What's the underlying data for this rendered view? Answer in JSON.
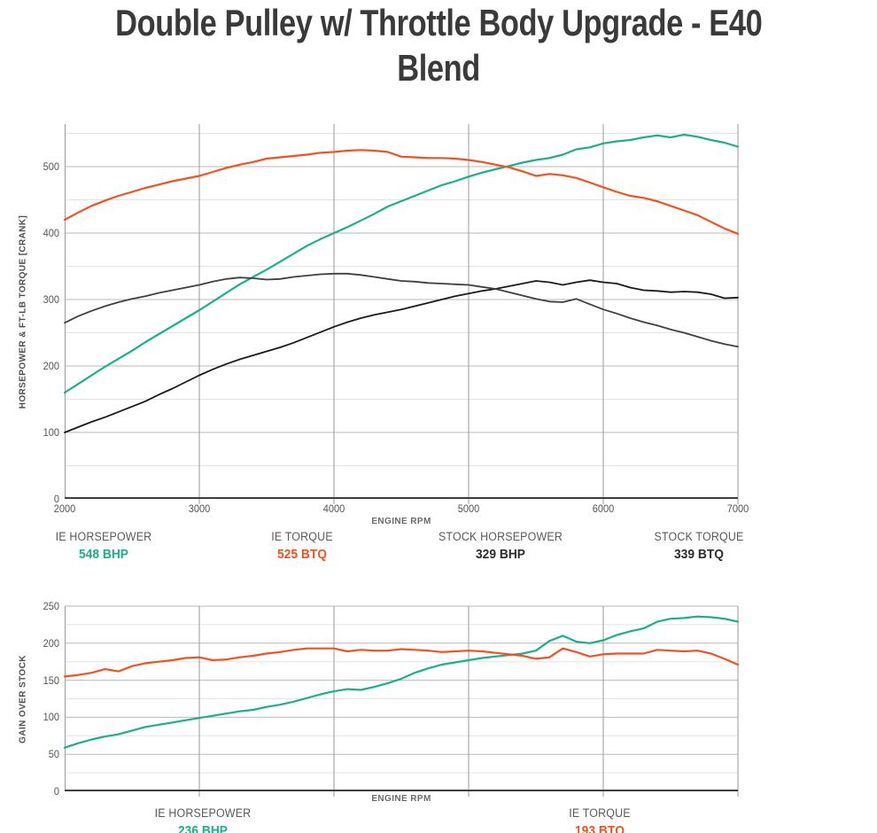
{
  "title": {
    "full": "Double Pulley w/ Throttle Body Upgrade - E40 Blend",
    "lines": [
      "Double Pulley w/ Throttle Body Upgrade - E40",
      "Blend"
    ]
  },
  "colors": {
    "ie_teal": "#1BAF8B",
    "ie_orange": "#F4511E",
    "stock_black": "#1A1A1A",
    "stock_gray": "#3F3F3F",
    "legend_dark_value": "#2D2D2D",
    "grid_minor": "#E3E3E3",
    "grid_major": "#B9B9B9",
    "grid_vertical": "#9A9A9A",
    "axis_bottom": "#3F3F3F",
    "axis_left": "#9A9A9A",
    "text_title": "#3A3A3A",
    "text_gray": "#565656"
  },
  "chart_data": [
    {
      "id": "main",
      "type": "line",
      "title": "",
      "xlabel": "ENGINE RPM",
      "ylabel": "HORSEPOWER & FT-LB TORQUE [CRANK]",
      "xlim": [
        2000,
        7000
      ],
      "ylim": [
        0,
        564
      ],
      "x_start": 2000,
      "x_step": 100,
      "x_ticks": [
        2000,
        3000,
        4000,
        5000,
        6000,
        7000
      ],
      "show_x_tick_labels": true,
      "y_ticks": [
        0,
        100,
        200,
        300,
        400,
        500
      ],
      "y_minor_step": 50,
      "y_grid_max": 550,
      "grid": true,
      "legend_position": "bottom",
      "series": [
        {
          "name": "IE HORSEPOWER",
          "peak": "548 BHP",
          "color": "#1BAF8B",
          "width": 2.2,
          "values": [
            160,
            173,
            186,
            199,
            211,
            223,
            236,
            248,
            260,
            272,
            284,
            297,
            310,
            323,
            334,
            345,
            357,
            369,
            381,
            391,
            400,
            409,
            419,
            429,
            440,
            448,
            456,
            464,
            472,
            478,
            485,
            491,
            496,
            501,
            506,
            510,
            513,
            518,
            526,
            529,
            535,
            538,
            540,
            544,
            547,
            544,
            548,
            545,
            540,
            536,
            530
          ]
        },
        {
          "name": "IE TORQUE",
          "peak": "525 BTQ",
          "color": "#F4511E",
          "width": 2.2,
          "values": [
            420,
            431,
            441,
            449,
            456,
            462,
            468,
            473,
            478,
            482,
            486,
            492,
            498,
            503,
            507,
            512,
            514,
            516,
            518,
            521,
            522,
            524,
            525,
            524,
            522,
            515,
            514,
            513,
            513,
            512,
            510,
            507,
            503,
            499,
            493,
            486,
            489,
            487,
            483,
            476,
            469,
            462,
            456,
            453,
            448,
            441,
            434,
            427,
            417,
            407,
            399
          ]
        },
        {
          "name": "STOCK HORSEPOWER",
          "peak": "329 BHP",
          "color": "#1A1A1A",
          "width": 1.8,
          "values": [
            100,
            108,
            116,
            123,
            131,
            139,
            147,
            157,
            166,
            176,
            186,
            195,
            203,
            210,
            216,
            222,
            228,
            235,
            243,
            251,
            259,
            266,
            272,
            277,
            281,
            285,
            290,
            295,
            300,
            305,
            309,
            313,
            316,
            320,
            324,
            328,
            326,
            322,
            326,
            329,
            326,
            324,
            318,
            314,
            313,
            311,
            312,
            311,
            308,
            302,
            303
          ]
        },
        {
          "name": "STOCK TORQUE",
          "peak": "339 BTQ",
          "color": "#3F3F3F",
          "width": 1.8,
          "values": [
            265,
            275,
            283,
            290,
            296,
            301,
            305,
            310,
            314,
            318,
            322,
            327,
            331,
            333,
            332,
            330,
            331,
            334,
            336,
            338,
            339,
            339,
            337,
            334,
            331,
            328,
            327,
            325,
            324,
            323,
            322,
            319,
            316,
            311,
            306,
            301,
            297,
            296,
            301,
            293,
            285,
            279,
            272,
            266,
            261,
            255,
            250,
            244,
            238,
            233,
            229
          ]
        }
      ],
      "legend": [
        {
          "label": "IE HORSEPOWER",
          "value": "548 BHP",
          "value_color": "#1BAF8B"
        },
        {
          "label": "IE TORQUE",
          "value": "525 BTQ",
          "value_color": "#F4511E"
        },
        {
          "label": "STOCK HORSEPOWER",
          "value": "329 BHP",
          "value_color": "#2D2D2D"
        },
        {
          "label": "STOCK TORQUE",
          "value": "339 BTQ",
          "value_color": "#2D2D2D"
        }
      ]
    },
    {
      "id": "gain",
      "type": "line",
      "title": "",
      "xlabel": "ENGINE RPM",
      "ylabel": "GAIN OVER STOCK",
      "xlim": [
        2000,
        7000
      ],
      "ylim": [
        0,
        250
      ],
      "x_start": 2000,
      "x_step": 100,
      "x_ticks": [
        2000,
        3000,
        4000,
        5000,
        6000,
        7000
      ],
      "show_x_tick_labels": false,
      "y_ticks": [
        0,
        50,
        100,
        150,
        200,
        250
      ],
      "y_minor_step": 25,
      "y_grid_max": 250,
      "grid": true,
      "legend_position": "bottom",
      "series": [
        {
          "name": "IE HORSEPOWER",
          "peak": "236 BHP",
          "color": "#1BAF8B",
          "width": 2.2,
          "values": [
            59,
            65,
            70,
            74,
            77,
            82,
            87,
            90,
            93,
            96,
            99,
            102,
            105,
            108,
            110,
            114,
            117,
            121,
            126,
            131,
            135,
            138,
            137,
            141,
            146,
            152,
            160,
            166,
            171,
            174,
            177,
            180,
            182,
            184,
            186,
            190,
            203,
            210,
            202,
            200,
            204,
            211,
            216,
            220,
            229,
            233,
            234,
            236,
            235,
            233,
            229
          ]
        },
        {
          "name": "IE TORQUE",
          "peak": "193 BTQ",
          "color": "#F4511E",
          "width": 2.2,
          "values": [
            155,
            157,
            160,
            165,
            162,
            169,
            173,
            175,
            177,
            180,
            181,
            177,
            178,
            181,
            183,
            186,
            188,
            191,
            193,
            193,
            193,
            189,
            191,
            190,
            190,
            192,
            191,
            190,
            188,
            189,
            190,
            189,
            187,
            185,
            183,
            179,
            181,
            193,
            188,
            182,
            185,
            186,
            186,
            186,
            191,
            190,
            189,
            190,
            186,
            179,
            171
          ]
        }
      ],
      "legend": [
        {
          "label": "IE HORSEPOWER",
          "value": "236 BHP",
          "value_color": "#1BAF8B"
        },
        {
          "label": "IE TORQUE",
          "value": "193 BTQ",
          "value_color": "#F4511E"
        }
      ]
    }
  ]
}
